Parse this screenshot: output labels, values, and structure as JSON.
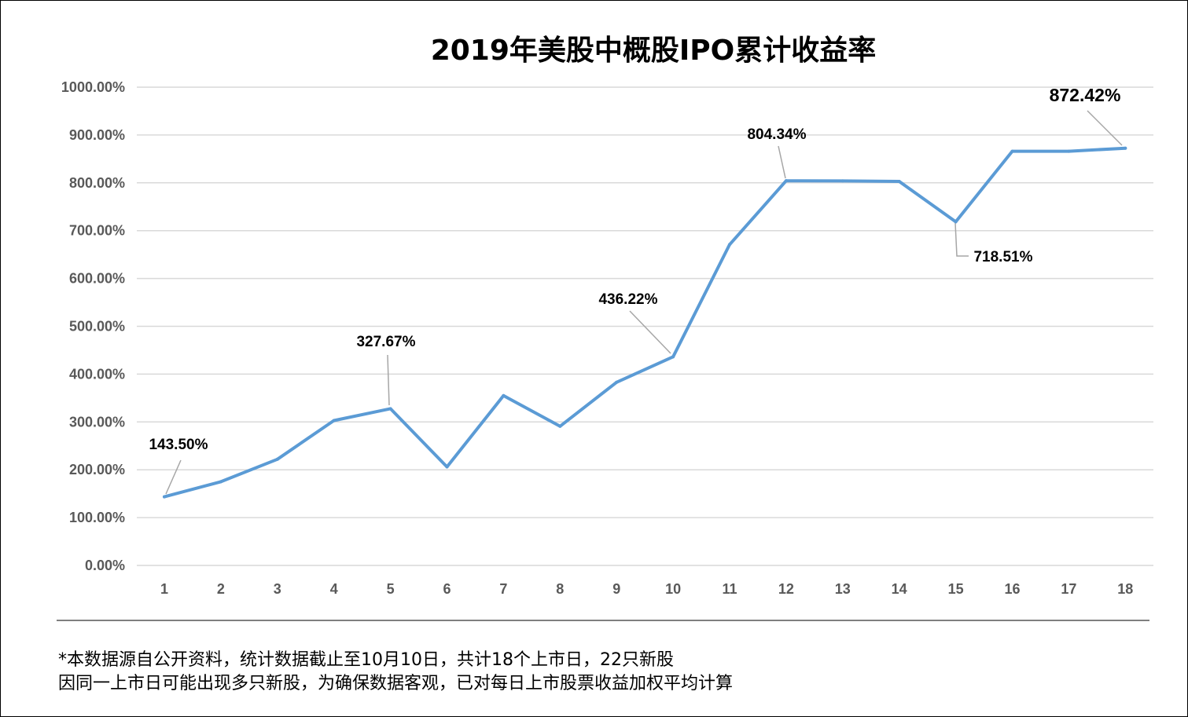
{
  "chart_data": {
    "type": "line",
    "title": "2019年美股中概股IPO累计收益率",
    "x": [
      1,
      2,
      3,
      4,
      5,
      6,
      7,
      8,
      9,
      10,
      11,
      12,
      13,
      14,
      15,
      16,
      17,
      18
    ],
    "values": [
      143.5,
      175,
      222,
      303,
      327.67,
      206,
      355,
      291,
      383,
      436.22,
      671,
      804.34,
      804,
      803,
      718.51,
      866,
      866,
      872.42
    ],
    "ylim": [
      0,
      1000
    ],
    "yticks": [
      0,
      100,
      200,
      300,
      400,
      500,
      600,
      700,
      800,
      900,
      1000
    ],
    "ytick_labels": [
      "0.00%",
      "100.00%",
      "200.00%",
      "300.00%",
      "400.00%",
      "500.00%",
      "600.00%",
      "700.00%",
      "800.00%",
      "900.00%",
      "1000.00%"
    ],
    "xtick_labels": [
      "1",
      "2",
      "3",
      "4",
      "5",
      "6",
      "7",
      "8",
      "9",
      "10",
      "11",
      "12",
      "13",
      "14",
      "15",
      "16",
      "17",
      "18"
    ],
    "grid": true,
    "line_color": "#5B9BD5",
    "annotations": [
      {
        "x": 1,
        "label": "143.50%"
      },
      {
        "x": 5,
        "label": "327.67%"
      },
      {
        "x": 10,
        "label": "436.22%"
      },
      {
        "x": 12,
        "label": "804.34%"
      },
      {
        "x": 15,
        "label": "718.51%"
      },
      {
        "x": 18,
        "label": "872.42%"
      }
    ]
  },
  "notes": {
    "line1": "*本数据源自公开资料，统计数据截止至10月10日，共计18个上市日，22只新股",
    "line2": "因同一上市日可能出现多只新股，为确保数据客观，已对每日上市股票收益加权平均计算"
  }
}
